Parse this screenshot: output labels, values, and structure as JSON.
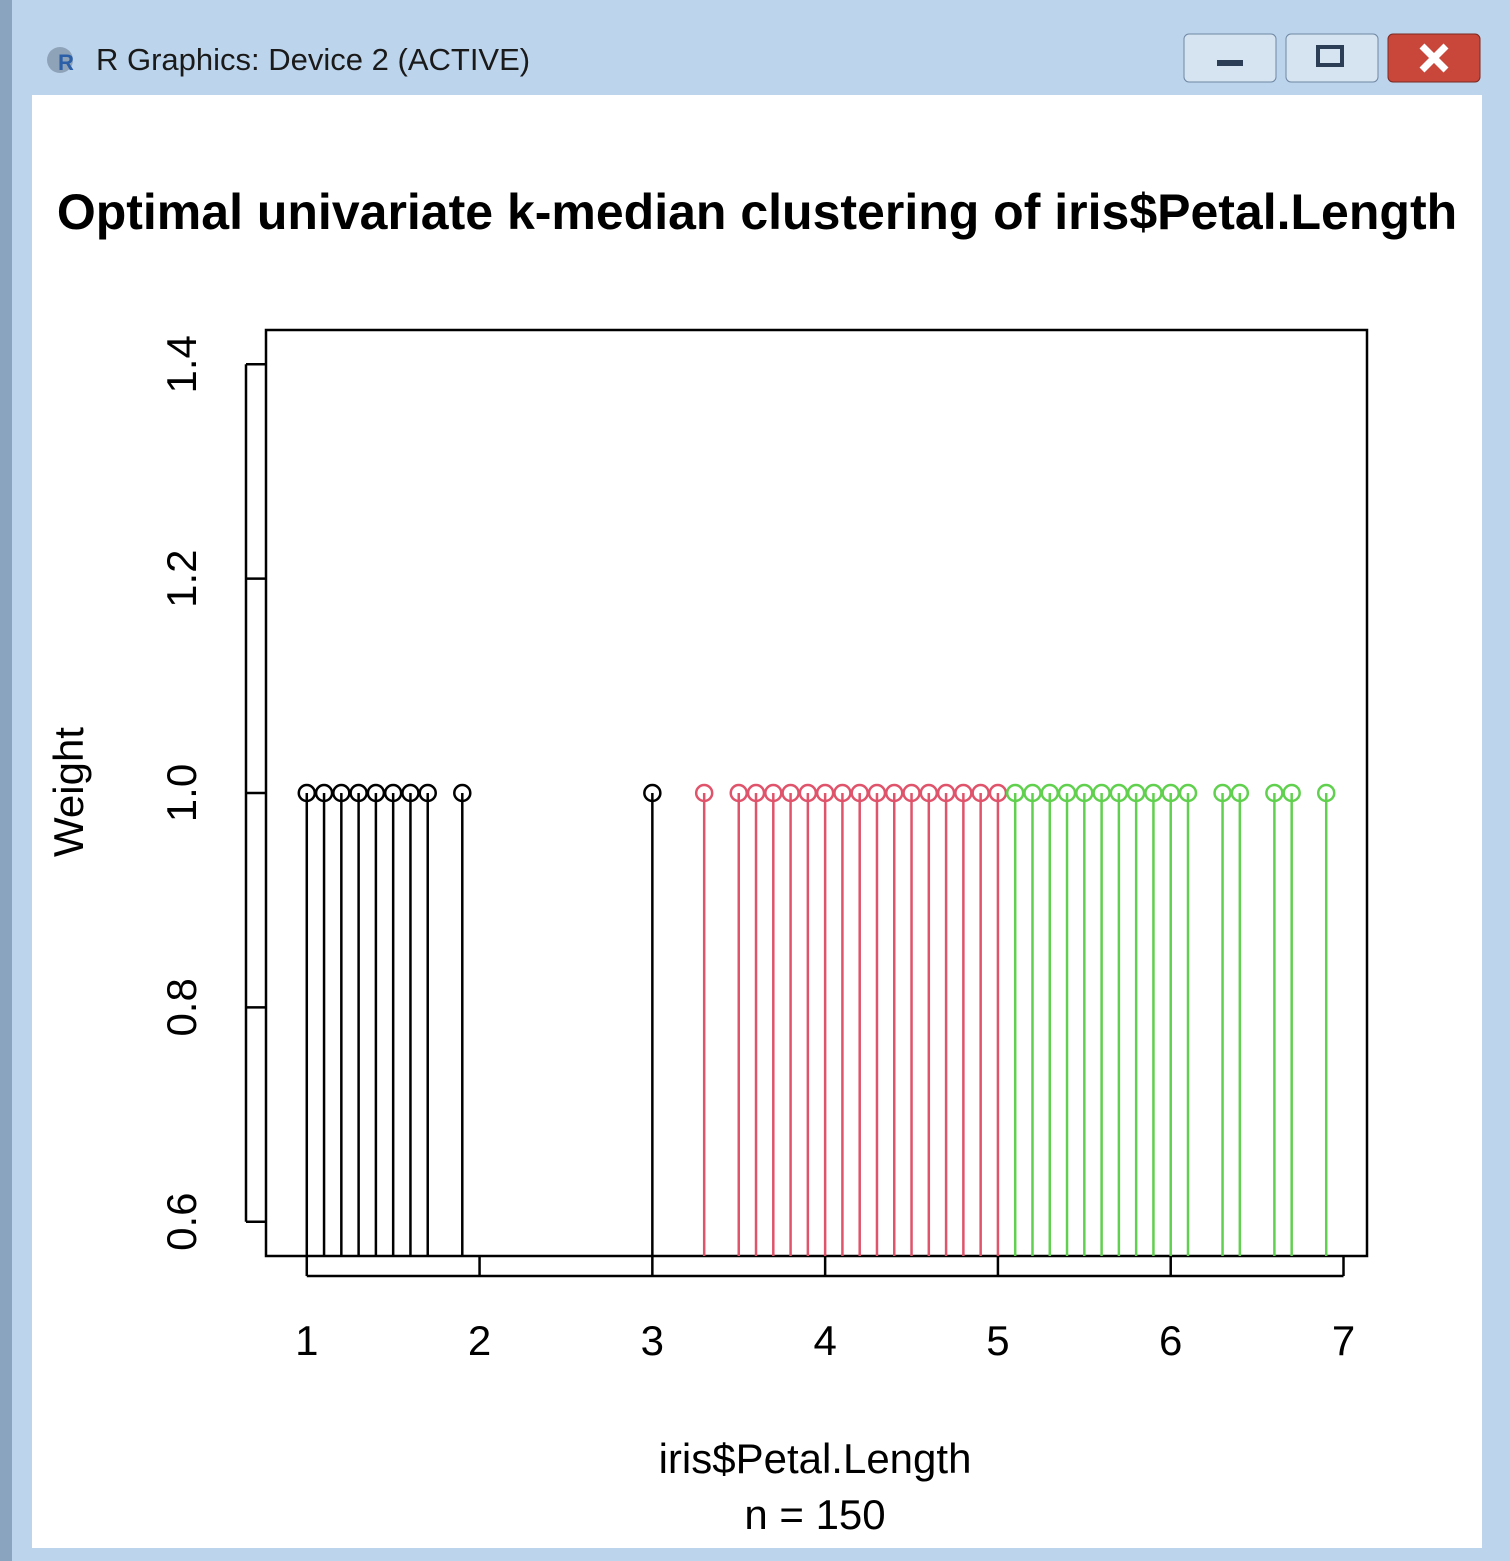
{
  "window": {
    "title": "R Graphics: Device 2 (ACTIVE)"
  },
  "chart_data": {
    "type": "stem",
    "title": "Optimal univariate k-median clustering of iris$Petal.Length",
    "x_label": "iris$Petal.Length",
    "y_label": "Weight",
    "subtitle": "n = 150",
    "x": [
      1.0,
      1.1,
      1.2,
      1.3,
      1.4,
      1.5,
      1.6,
      1.7,
      1.9,
      3.0,
      3.3,
      3.5,
      3.6,
      3.7,
      3.8,
      3.9,
      4.0,
      4.1,
      4.2,
      4.3,
      4.4,
      4.5,
      4.6,
      4.7,
      4.8,
      4.9,
      5.0,
      5.1,
      5.2,
      5.3,
      5.4,
      5.5,
      5.6,
      5.7,
      5.8,
      5.9,
      6.0,
      6.1,
      6.3,
      6.4,
      6.6,
      6.7,
      6.9
    ],
    "values": [
      1,
      1,
      1,
      1,
      1,
      1,
      1,
      1,
      1,
      1,
      1,
      1,
      1,
      1,
      1,
      1,
      1,
      1,
      1,
      1,
      1,
      1,
      1,
      1,
      1,
      1,
      1,
      1,
      1,
      1,
      1,
      1,
      1,
      1,
      1,
      1,
      1,
      1,
      1,
      1,
      1,
      1,
      1
    ],
    "colors": [
      "#000000",
      "#000000",
      "#000000",
      "#000000",
      "#000000",
      "#000000",
      "#000000",
      "#000000",
      "#000000",
      "#000000",
      "#DF536B",
      "#DF536B",
      "#DF536B",
      "#DF536B",
      "#DF536B",
      "#DF536B",
      "#DF536B",
      "#DF536B",
      "#DF536B",
      "#DF536B",
      "#DF536B",
      "#DF536B",
      "#DF536B",
      "#DF536B",
      "#DF536B",
      "#DF536B",
      "#DF536B",
      "#61D04F",
      "#61D04F",
      "#61D04F",
      "#61D04F",
      "#61D04F",
      "#61D04F",
      "#61D04F",
      "#61D04F",
      "#61D04F",
      "#61D04F",
      "#61D04F",
      "#61D04F",
      "#61D04F",
      "#61D04F",
      "#61D04F",
      "#61D04F"
    ],
    "xlim": [
      0.764,
      7.136
    ],
    "ylim": [
      0.568,
      1.432
    ],
    "xticks": [
      1,
      2,
      3,
      4,
      5,
      6,
      7
    ],
    "yticks": [
      0.6,
      0.8,
      {
        "value": 1.0,
        "label": "1.0"
      },
      1.2,
      1.4
    ]
  }
}
